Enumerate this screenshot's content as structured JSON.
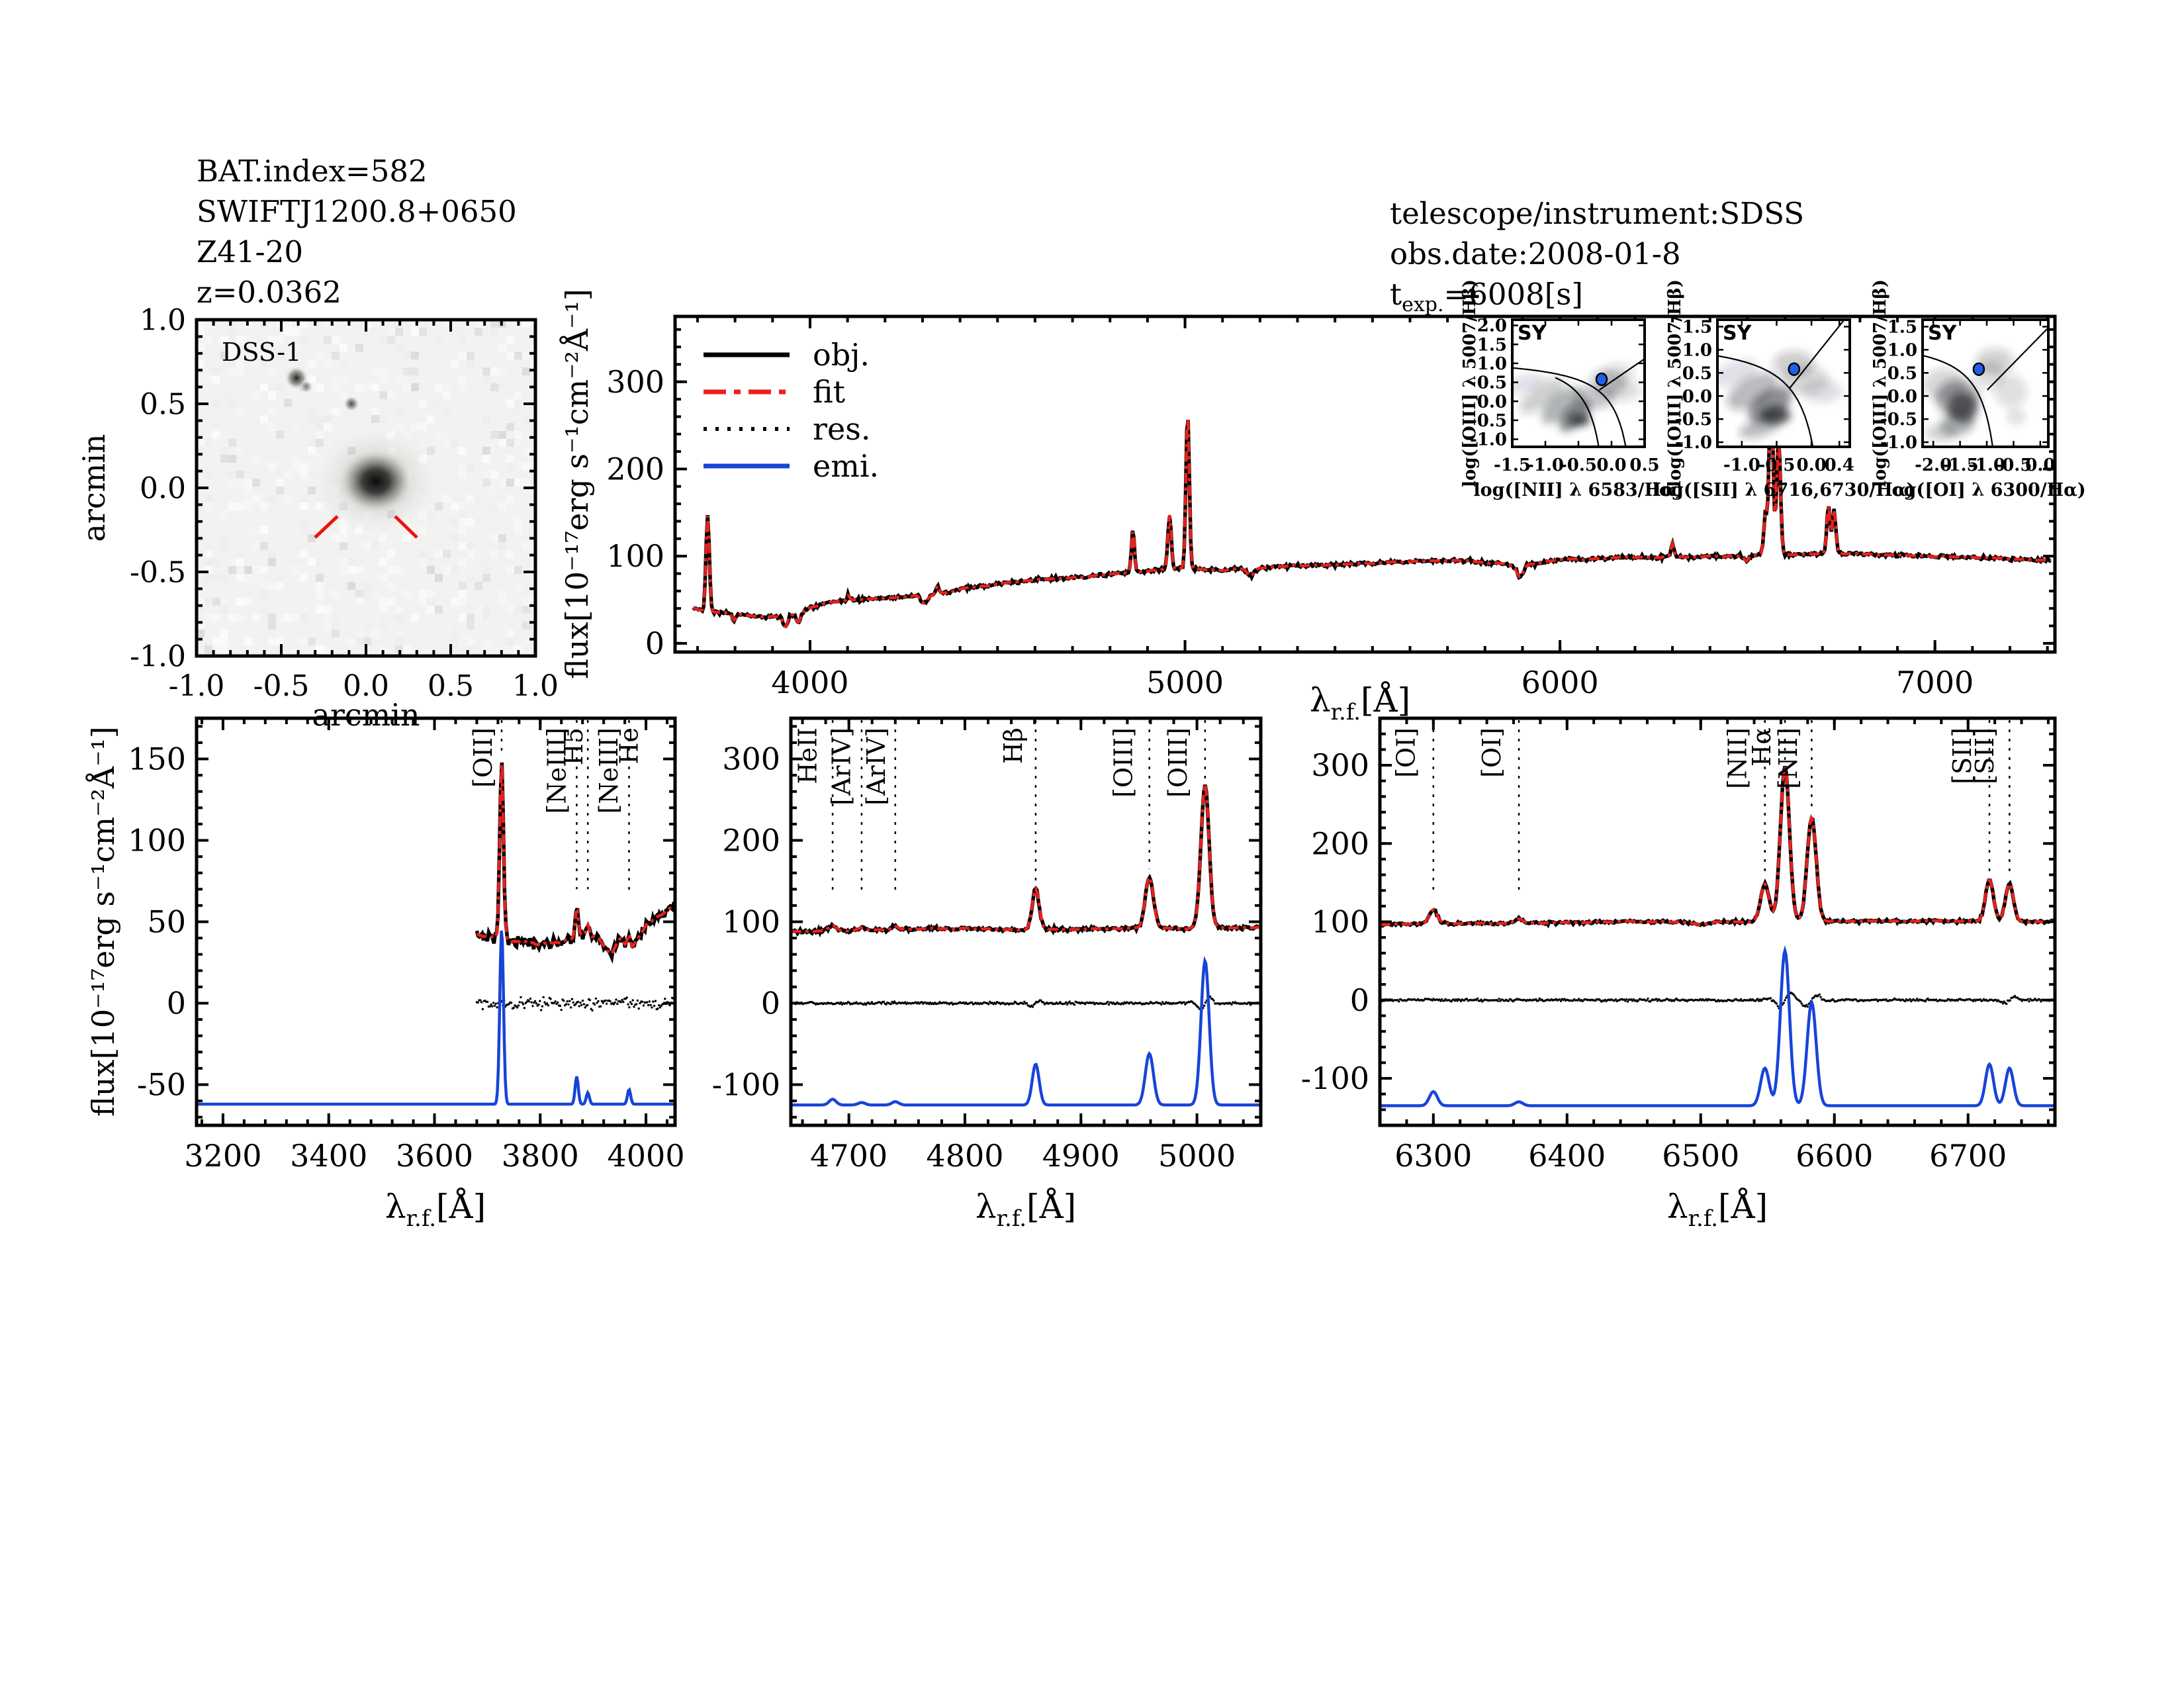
{
  "header": {
    "left_lines": [
      "BAT.index=582",
      "SWIFTJ1200.8+0650",
      "Z41-20",
      "z=0.0362"
    ],
    "right_line1": "telescope/instrument:SDSS",
    "right_line2": "obs.date:2008-01-8",
    "texp_prefix": "t",
    "texp_sub": "exp.",
    "texp_value": "=6008[s]"
  },
  "colors": {
    "obj": "#000000",
    "fit": "#e8211d",
    "res": "#000000",
    "emi": "#1744d8",
    "annotation_red": "#e8211d",
    "dss_marker": "#ee1111",
    "badge": "#1f5fe0"
  },
  "legend": {
    "items": [
      {
        "label": "obj.",
        "color": "#000000",
        "style": "solid"
      },
      {
        "label": "fit",
        "color": "#e8211d",
        "style": "dashdot"
      },
      {
        "label": "res.",
        "color": "#000000",
        "style": "dotted"
      },
      {
        "label": "emi.",
        "color": "#1744d8",
        "style": "solid"
      }
    ]
  },
  "axis_labels": {
    "flux": "flux[10⁻¹⁷erg s⁻¹cm⁻²Å⁻¹]",
    "lambda": "λ",
    "lambda_sub": "r.f.",
    "lambda_unit": "[Å]"
  },
  "dss": {
    "label": "DSS-1",
    "xlabel": "arcmin",
    "ylabel": "arcmin",
    "xlim": [
      -1.0,
      1.0
    ],
    "ylim": [
      -1.0,
      1.0
    ],
    "xticks": [
      -1.0,
      -0.5,
      0.0,
      0.5,
      1.0
    ],
    "yticks": [
      -1.0,
      -0.5,
      0.0,
      0.5,
      1.0
    ],
    "minor": 0.1
  },
  "chart_data": {
    "main_spectrum": {
      "type": "line",
      "title": "",
      "xlabel": "lambda_r.f.[A]",
      "ylabel": "flux[10-17 erg s-1 cm-2 A-1]",
      "series": [
        "obj.",
        "fit"
      ],
      "xlim": [
        3640,
        7320
      ],
      "ylim": [
        -10,
        375
      ],
      "xticks": [
        4000,
        5000,
        6000,
        7000
      ],
      "xminor": 100,
      "yticks": [
        0,
        100,
        200,
        300
      ],
      "yminor": 20,
      "data_xmin": 3688,
      "data_xmax": 7310,
      "noise_sigma": 3.2,
      "continuum": [
        [
          3690,
          40
        ],
        [
          3740,
          36
        ],
        [
          3800,
          34
        ],
        [
          3860,
          31
        ],
        [
          3920,
          30
        ],
        [
          3960,
          34
        ],
        [
          4000,
          41
        ],
        [
          4060,
          47
        ],
        [
          4120,
          50
        ],
        [
          4200,
          52
        ],
        [
          4270,
          54
        ],
        [
          4340,
          56
        ],
        [
          4400,
          62
        ],
        [
          4500,
          68
        ],
        [
          4600,
          73
        ],
        [
          4700,
          75
        ],
        [
          4800,
          79
        ],
        [
          4900,
          83
        ],
        [
          5000,
          86
        ],
        [
          5100,
          84
        ],
        [
          5200,
          87
        ],
        [
          5300,
          89
        ],
        [
          5450,
          91
        ],
        [
          5600,
          94
        ],
        [
          5750,
          95
        ],
        [
          5900,
          89
        ],
        [
          6000,
          96
        ],
        [
          6150,
          98
        ],
        [
          6300,
          99
        ],
        [
          6450,
          100
        ],
        [
          6600,
          102
        ],
        [
          6750,
          103
        ],
        [
          6900,
          101
        ],
        [
          7050,
          99
        ],
        [
          7200,
          97
        ],
        [
          7310,
          95
        ]
      ],
      "absorption": [
        [
          3797,
          8,
          5
        ],
        [
          3934,
          13,
          6
        ],
        [
          3969,
          11,
          6
        ],
        [
          4304,
          9,
          9
        ],
        [
          5175,
          9,
          9
        ],
        [
          5893,
          13,
          8
        ],
        [
          6497,
          6,
          6
        ]
      ],
      "emission_lines": [
        [
          3727,
          110,
          4.5
        ],
        [
          4102,
          6,
          4
        ],
        [
          4340,
          10,
          4
        ],
        [
          4861,
          48,
          4
        ],
        [
          4959,
          62,
          4.5
        ],
        [
          5007,
          178,
          4.5
        ],
        [
          6300,
          15,
          4
        ],
        [
          6548,
          48,
          4.5
        ],
        [
          6563,
          200,
          5
        ],
        [
          6583,
          135,
          5
        ],
        [
          6716,
          55,
          4.5
        ],
        [
          6731,
          50,
          4.5
        ]
      ]
    },
    "bpt_insets": {
      "type": "scatter",
      "badge": "SY",
      "ylabel": "log([OIII] λ 5007/Hβ)",
      "panels": [
        {
          "xlabel": "log([NII] λ 6583/Hα)",
          "xlim": [
            -1.5,
            0.5
          ],
          "ylim": [
            -1.2,
            2.15
          ],
          "xticks": [
            -1.5,
            -1.0,
            -0.5,
            0.0,
            0.5
          ],
          "yticks": [
            2.0,
            1.5,
            1.0,
            0.5,
            0.0,
            -0.5,
            -1.0
          ],
          "point": [
            -0.15,
            0.58
          ],
          "curves": [
            {
              "type": "hyper",
              "a": 0.61,
              "b": 0.47,
              "c": 1.19,
              "xr": [
                -1.5,
                0.4
              ]
            },
            {
              "type": "hyper",
              "a": 0.61,
              "b": 0.05,
              "c": 1.3,
              "xr": [
                -0.85,
                -0.08
              ]
            },
            {
              "type": "line",
              "m": 1.2,
              "q": 0.52,
              "xr": [
                -0.185,
                0.5
              ]
            }
          ]
        },
        {
          "xlabel": "log([SII] λ 6716,6730/Hα)",
          "xlim": [
            -1.35,
            0.55
          ],
          "ylim": [
            -1.1,
            1.65
          ],
          "xticks": [
            -1.0,
            -0.5,
            0.0,
            0.4
          ],
          "yticks": [
            1.5,
            1.0,
            0.5,
            0.0,
            -0.5,
            -1.0
          ],
          "point": [
            -0.25,
            0.58
          ],
          "curves": [
            {
              "type": "hyper",
              "a": 0.72,
              "b": 0.32,
              "c": 1.3,
              "xr": [
                -1.35,
                0.27
              ]
            },
            {
              "type": "line",
              "m": 1.89,
              "q": 0.76,
              "xr": [
                -0.315,
                0.47
              ]
            }
          ]
        },
        {
          "xlabel": "log([OI] λ 6300/Hα)",
          "xlim": [
            -2.2,
            0.15
          ],
          "ylim": [
            -1.1,
            1.65
          ],
          "xticks": [
            -2.0,
            -1.5,
            -1.0,
            -0.5,
            0.0
          ],
          "yticks": [
            1.5,
            1.0,
            0.5,
            0.0,
            -0.5,
            -1.0
          ],
          "point": [
            -1.15,
            0.58
          ],
          "curves": [
            {
              "type": "hyper",
              "a": 0.73,
              "b": -0.59,
              "c": 1.33,
              "xr": [
                -2.2,
                -0.64
              ]
            },
            {
              "type": "line",
              "m": 1.18,
              "q": 1.3,
              "xr": [
                -0.99,
                0.15
              ]
            }
          ]
        }
      ]
    },
    "zoom_panels": [
      {
        "name": "blue-zoom",
        "xlim": [
          3150,
          4055
        ],
        "ylim": [
          -75,
          175
        ],
        "xticks": [
          3200,
          3400,
          3600,
          3800,
          4000
        ],
        "xminor": 40,
        "yticks": [
          -50,
          0,
          50,
          100,
          150
        ],
        "yminor": 10,
        "data_xmin": 3680,
        "noise_sigma": 4.5,
        "res_sigma": 5,
        "res_wiggle": [],
        "continuum": [
          [
            3680,
            42
          ],
          [
            3720,
            40
          ],
          [
            3760,
            38
          ],
          [
            3800,
            36
          ],
          [
            3840,
            38
          ],
          [
            3880,
            42
          ],
          [
            3910,
            40
          ],
          [
            3935,
            30
          ],
          [
            3952,
            40
          ],
          [
            3972,
            32
          ],
          [
            4000,
            48
          ],
          [
            4030,
            55
          ],
          [
            4055,
            60
          ]
        ],
        "absorption": [],
        "emission_lines": [
          [
            3727,
            108,
            3.5
          ],
          [
            3869,
            17,
            3
          ],
          [
            3890,
            7,
            3
          ],
          [
            3968,
            9,
            3
          ]
        ],
        "emi_baseline": -62,
        "annotations": [
          {
            "label": "[OII]",
            "x": 3727,
            "lx": 3708,
            "color": "black",
            "yend": 152
          },
          {
            "label": "[NeIII]",
            "x": 3869,
            "lx": 3848,
            "color": "black",
            "yend": 70
          },
          {
            "label": "H5",
            "x": 3890,
            "lx": 3880,
            "color": "red",
            "yend": 70
          },
          {
            "label": "[NeIII]",
            "x": 3968,
            "lx": 3946,
            "color": "red",
            "yend": 66,
            "line": false
          },
          {
            "label": "He",
            "x": 3968,
            "lx": 3984,
            "color": "black",
            "yend": 66
          }
        ]
      },
      {
        "name": "green-zoom",
        "xlim": [
          4650,
          5055
        ],
        "ylim": [
          -150,
          350
        ],
        "xticks": [
          4700,
          4800,
          4900,
          5000
        ],
        "xminor": 20,
        "yticks": [
          -100,
          0,
          100,
          200,
          300
        ],
        "yminor": 20,
        "noise_sigma": 3.5,
        "res_sigma": 2.5,
        "res_wiggle": [
          [
            5007,
            9,
            10
          ],
          [
            4861,
            4,
            8
          ]
        ],
        "continuum": [
          [
            4650,
            88
          ],
          [
            4700,
            89
          ],
          [
            4750,
            91
          ],
          [
            4800,
            92
          ],
          [
            4850,
            90
          ],
          [
            4900,
            91
          ],
          [
            4950,
            92
          ],
          [
            5000,
            92
          ],
          [
            5055,
            93
          ]
        ],
        "absorption": [],
        "emission_lines": [
          [
            4686,
            7,
            3
          ],
          [
            4711,
            3,
            3
          ],
          [
            4740,
            4,
            3
          ],
          [
            4861,
            50,
            3
          ],
          [
            4959,
            63,
            3.5
          ],
          [
            5007,
            177,
            3.5
          ]
        ],
        "emi_baseline": -125,
        "annotations": [
          {
            "label": "HeII",
            "x": 4686,
            "lx": 4672,
            "color": "black",
            "yend": 135
          },
          {
            "label": "[ArIV]",
            "x": 4711,
            "lx": 4701,
            "color": "red",
            "yend": 135
          },
          {
            "label": "[ArIV]",
            "x": 4740,
            "lx": 4731,
            "color": "red",
            "yend": 135
          },
          {
            "label": "Hβ",
            "x": 4861,
            "lx": 4849,
            "color": "black",
            "yend": 148
          },
          {
            "label": "[OIII]",
            "x": 4959,
            "lx": 4944,
            "color": "black",
            "yend": 165
          },
          {
            "label": "[OIII]",
            "x": 5007,
            "lx": 4991,
            "color": "black",
            "yend": 272
          }
        ]
      },
      {
        "name": "red-zoom",
        "xlim": [
          6260,
          6765
        ],
        "ylim": [
          -160,
          360
        ],
        "xticks": [
          6300,
          6400,
          6500,
          6600,
          6700
        ],
        "xminor": 20,
        "yticks": [
          -100,
          0,
          100,
          200,
          300
        ],
        "yminor": 20,
        "noise_sigma": 2.8,
        "res_sigma": 2.5,
        "res_wiggle": [
          [
            6563,
            10,
            10
          ],
          [
            6583,
            8,
            10
          ],
          [
            6731,
            5,
            8
          ]
        ],
        "continuum": [
          [
            6260,
            97
          ],
          [
            6350,
            98
          ],
          [
            6450,
            100
          ],
          [
            6550,
            100
          ],
          [
            6650,
            101
          ],
          [
            6765,
            100
          ]
        ],
        "absorption": [
          [
            6500,
            4,
            6
          ]
        ],
        "emission_lines": [
          [
            6300,
            18,
            3
          ],
          [
            6364,
            5,
            3
          ],
          [
            6548,
            48,
            3.2
          ],
          [
            6563,
            198,
            3.4
          ],
          [
            6583,
            132,
            3.4
          ],
          [
            6716,
            53,
            3
          ],
          [
            6731,
            48,
            3
          ]
        ],
        "emi_baseline": -135,
        "annotations": [
          {
            "label": "[OI]",
            "x": 6300,
            "lx": 6286,
            "color": "black",
            "yend": 140
          },
          {
            "label": "[OI]",
            "x": 6364,
            "lx": 6350,
            "color": "black",
            "yend": 140
          },
          {
            "label": "[NII]",
            "x": 6548,
            "lx": 6534,
            "color": "black",
            "yend": 162
          },
          {
            "label": "Hα",
            "x": 6563,
            "lx": 6552,
            "color": "black",
            "yend": 300
          },
          {
            "label": "[NII]",
            "x": 6583,
            "lx": 6572,
            "color": "black",
            "yend": 245
          },
          {
            "label": "[SII]",
            "x": 6716,
            "lx": 6702,
            "color": "black",
            "yend": 160
          },
          {
            "label": "[SII]",
            "x": 6731,
            "lx": 6719,
            "color": "black",
            "yend": 160
          }
        ]
      }
    ]
  }
}
